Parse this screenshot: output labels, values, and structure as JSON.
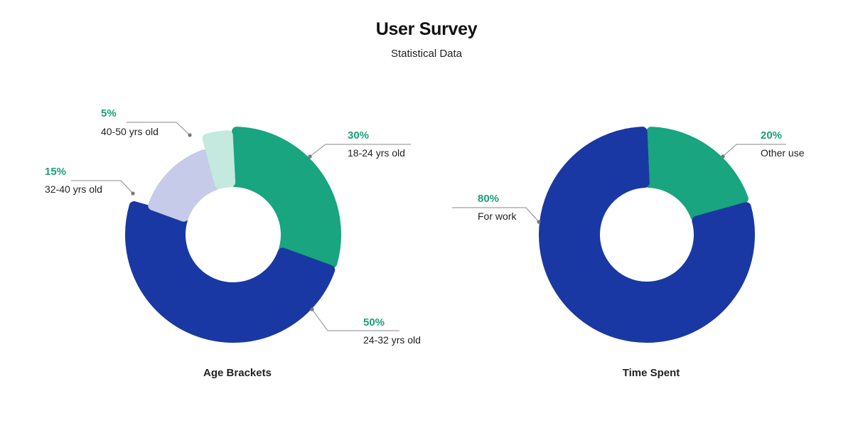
{
  "header": {
    "title": "User Survey",
    "subtitle": "Statistical Data"
  },
  "colors": {
    "blue": "#1a38a3",
    "green": "#18a57f",
    "lavender": "#c5cbe8",
    "mint": "#c4e9de",
    "accent_text": "#1aa07b"
  },
  "chart_data": [
    {
      "type": "pie",
      "title": "Age Brackets",
      "slices": [
        {
          "label": "18-24 yrs old",
          "value": 30,
          "display": "30%",
          "color": "#18a57f"
        },
        {
          "label": "24-32 yrs old",
          "value": 50,
          "display": "50%",
          "color": "#1a38a3"
        },
        {
          "label": "32-40 yrs old",
          "value": 15,
          "display": "15%",
          "color": "#c5cbe8"
        },
        {
          "label": "40-50 yrs old",
          "value": 5,
          "display": "5%",
          "color": "#c4e9de"
        }
      ]
    },
    {
      "type": "pie",
      "title": "Time Spent",
      "slices": [
        {
          "label": "Other use",
          "value": 20,
          "display": "20%",
          "color": "#18a57f"
        },
        {
          "label": "For work",
          "value": 80,
          "display": "80%",
          "color": "#1a38a3"
        }
      ]
    }
  ]
}
